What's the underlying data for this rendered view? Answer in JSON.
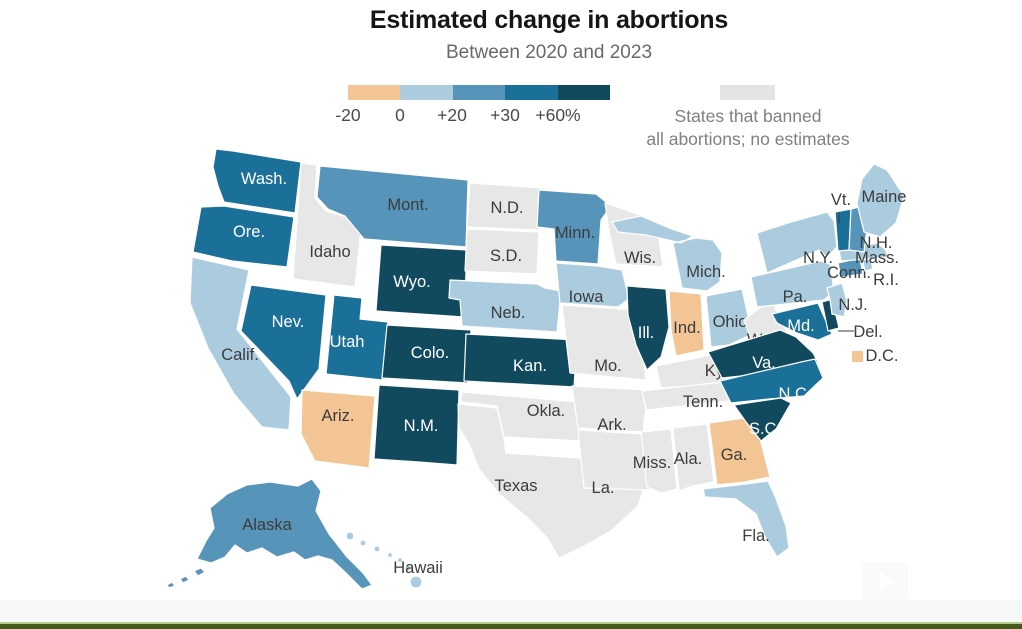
{
  "header": {
    "title": "Estimated change in abortions",
    "subtitle": "Between 2020 and 2023"
  },
  "legend": {
    "ticks": [
      "-20",
      "0",
      "+20",
      "+30",
      "+60%"
    ],
    "segment_colors": [
      "#f3c594",
      "#abccdf",
      "#5794ba",
      "#1a7099",
      "#114a5e"
    ],
    "banned_swatch_color": "#e4e4e4",
    "banned_note_line1": "States that banned",
    "banned_note_line2": "all abortions; no estimates"
  },
  "footer": {
    "strip_color": "#f6f7f8",
    "accent_bar_dark": "#47591f",
    "accent_bar_light": "#b4cc92"
  },
  "chart_data": {
    "type": "choropleth",
    "title": "Estimated change in abortions",
    "subtitle": "Between 2020 and 2023",
    "unit": "percent change in estimated abortions, 2020 to 2023",
    "legend_ticks": [
      "-20",
      "0",
      "+20",
      "+30",
      "+60%"
    ],
    "bins": [
      {
        "id": "decrease",
        "label": "-20 to 0",
        "color": "#f3c594"
      },
      {
        "id": "up_0_20",
        "label": "0 to +20",
        "color": "#abccdf"
      },
      {
        "id": "up_20_30",
        "label": "+20 to +30",
        "color": "#5794ba"
      },
      {
        "id": "up_30_60",
        "label": "+30 to +60",
        "color": "#1a7099"
      },
      {
        "id": "up_60_plus",
        "label": "+60% or more",
        "color": "#114a5e"
      },
      {
        "id": "banned",
        "label": "States that banned all abortions; no estimates",
        "color": "#e7e7e7"
      }
    ],
    "states": [
      {
        "id": "WA",
        "name": "Washington",
        "label": "Wash.",
        "bin": "up_30_60"
      },
      {
        "id": "OR",
        "name": "Oregon",
        "label": "Ore.",
        "bin": "up_30_60"
      },
      {
        "id": "CA",
        "name": "California",
        "label": "Calif.",
        "bin": "up_0_20"
      },
      {
        "id": "ID",
        "name": "Idaho",
        "label": "Idaho",
        "bin": "banned"
      },
      {
        "id": "MT",
        "name": "Montana",
        "label": "Mont.",
        "bin": "up_20_30"
      },
      {
        "id": "WY",
        "name": "Wyoming",
        "label": "Wyo.",
        "bin": "up_60_plus"
      },
      {
        "id": "NV",
        "name": "Nevada",
        "label": "Nev.",
        "bin": "up_30_60"
      },
      {
        "id": "UT",
        "name": "Utah",
        "label": "Utah",
        "bin": "up_30_60"
      },
      {
        "id": "CO",
        "name": "Colorado",
        "label": "Colo.",
        "bin": "up_60_plus"
      },
      {
        "id": "AZ",
        "name": "Arizona",
        "label": "Ariz.",
        "bin": "decrease"
      },
      {
        "id": "NM",
        "name": "New Mexico",
        "label": "N.M.",
        "bin": "up_60_plus"
      },
      {
        "id": "ND",
        "name": "North Dakota",
        "label": "N.D.",
        "bin": "banned"
      },
      {
        "id": "SD",
        "name": "South Dakota",
        "label": "S.D.",
        "bin": "banned"
      },
      {
        "id": "NE",
        "name": "Nebraska",
        "label": "Neb.",
        "bin": "up_0_20"
      },
      {
        "id": "KS",
        "name": "Kansas",
        "label": "Kan.",
        "bin": "up_60_plus"
      },
      {
        "id": "OK",
        "name": "Oklahoma",
        "label": "Okla.",
        "bin": "banned"
      },
      {
        "id": "TX",
        "name": "Texas",
        "label": "Texas",
        "bin": "banned"
      },
      {
        "id": "MN",
        "name": "Minnesota",
        "label": "Minn.",
        "bin": "up_20_30"
      },
      {
        "id": "IA",
        "name": "Iowa",
        "label": "Iowa",
        "bin": "up_0_20"
      },
      {
        "id": "MO",
        "name": "Missouri",
        "label": "Mo.",
        "bin": "banned"
      },
      {
        "id": "AR",
        "name": "Arkansas",
        "label": "Ark.",
        "bin": "banned"
      },
      {
        "id": "LA",
        "name": "Louisiana",
        "label": "La.",
        "bin": "banned"
      },
      {
        "id": "WI",
        "name": "Wisconsin",
        "label": "Wis.",
        "bin": "banned"
      },
      {
        "id": "IL",
        "name": "Illinois",
        "label": "Ill.",
        "bin": "up_60_plus"
      },
      {
        "id": "IN",
        "name": "Indiana",
        "label": "Ind.",
        "bin": "decrease"
      },
      {
        "id": "MI",
        "name": "Michigan",
        "label": "Mich.",
        "bin": "up_0_20"
      },
      {
        "id": "OH",
        "name": "Ohio",
        "label": "Ohio",
        "bin": "up_0_20"
      },
      {
        "id": "KY",
        "name": "Kentucky",
        "label": "Ky.",
        "bin": "banned"
      },
      {
        "id": "TN",
        "name": "Tennessee",
        "label": "Tenn.",
        "bin": "banned"
      },
      {
        "id": "MS",
        "name": "Mississippi",
        "label": "Miss.",
        "bin": "banned"
      },
      {
        "id": "AL",
        "name": "Alabama",
        "label": "Ala.",
        "bin": "banned"
      },
      {
        "id": "GA",
        "name": "Georgia",
        "label": "Ga.",
        "bin": "decrease"
      },
      {
        "id": "FL",
        "name": "Florida",
        "label": "Fla.",
        "bin": "up_0_20"
      },
      {
        "id": "WV",
        "name": "West Virginia",
        "label": "W.Va",
        "bin": "banned"
      },
      {
        "id": "VA",
        "name": "Virginia",
        "label": "Va.",
        "bin": "up_60_plus"
      },
      {
        "id": "MD",
        "name": "Maryland",
        "label": "Md.",
        "bin": "up_30_60"
      },
      {
        "id": "DE",
        "name": "Delaware",
        "label": "Del.",
        "bin": "up_60_plus"
      },
      {
        "id": "NC",
        "name": "North Carolina",
        "label": "N.C.",
        "bin": "up_30_60"
      },
      {
        "id": "SC",
        "name": "South Carolina",
        "label": "S.C.",
        "bin": "up_60_plus"
      },
      {
        "id": "PA",
        "name": "Pennsylvania",
        "label": "Pa.",
        "bin": "up_0_20"
      },
      {
        "id": "NY",
        "name": "New York",
        "label": "N.Y.",
        "bin": "up_0_20"
      },
      {
        "id": "NJ",
        "name": "New Jersey",
        "label": "N.J.",
        "bin": "up_0_20"
      },
      {
        "id": "CT",
        "name": "Connecticut",
        "label": "Conn.",
        "bin": "up_20_30"
      },
      {
        "id": "RI",
        "name": "Rhode Island",
        "label": "R.I.",
        "bin": "up_0_20"
      },
      {
        "id": "MA",
        "name": "Massachusetts",
        "label": "Mass.",
        "bin": "up_0_20"
      },
      {
        "id": "VT",
        "name": "Vermont",
        "label": "Vt.",
        "bin": "up_30_60"
      },
      {
        "id": "NH",
        "name": "New Hampshire",
        "label": "N.H.",
        "bin": "up_20_30"
      },
      {
        "id": "ME",
        "name": "Maine",
        "label": "Maine",
        "bin": "up_0_20"
      },
      {
        "id": "AK",
        "name": "Alaska",
        "label": "Alaska",
        "bin": "up_20_30"
      },
      {
        "id": "HI",
        "name": "Hawaii",
        "label": "Hawaii",
        "bin": "up_0_20"
      },
      {
        "id": "DC",
        "name": "District of Columbia",
        "label": "D.C.",
        "bin": "decrease"
      }
    ]
  }
}
